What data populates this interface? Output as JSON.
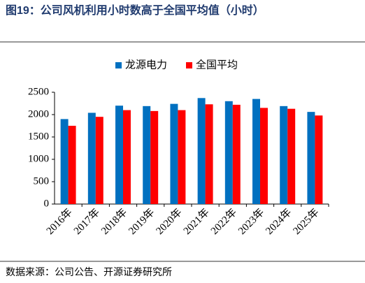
{
  "chart_data": {
    "type": "bar",
    "title": "图19：公司风机利用小时数高于全国平均值（小时）",
    "source": "数据来源：公司公告、开源证券研究所",
    "categories": [
      "2016年",
      "2017年",
      "2018年",
      "2019年",
      "2020年",
      "2021年",
      "2022年",
      "2023年",
      "2024年",
      "2025年"
    ],
    "series": [
      {
        "name": "龙源电力",
        "color": "#0070c0",
        "values": [
          1900,
          2040,
          2200,
          2190,
          2240,
          2370,
          2300,
          2350,
          2190,
          2060
        ]
      },
      {
        "name": "全国平均",
        "color": "#ff0000",
        "values": [
          1750,
          1950,
          2100,
          2080,
          2100,
          2230,
          2220,
          2150,
          2130,
          1980
        ]
      }
    ],
    "ylim": [
      0,
      2500
    ],
    "yticks": [
      0,
      500,
      1000,
      1500,
      2000,
      2500
    ],
    "grid": false,
    "legend": "top"
  }
}
